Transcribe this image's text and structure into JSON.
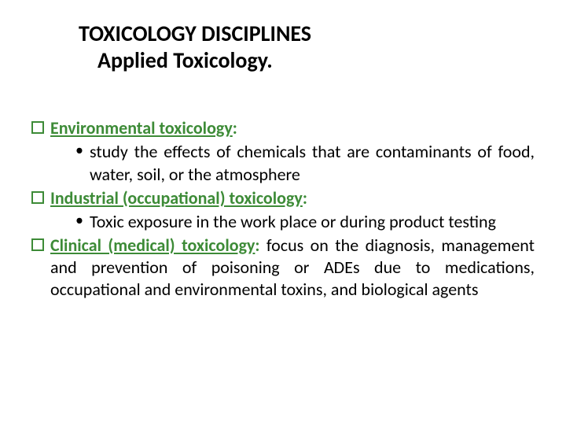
{
  "colors": {
    "accent": "#3d8b37",
    "text": "#000000",
    "background": "#ffffff"
  },
  "title": {
    "line1": "TOXICOLOGY DISCIPLINES",
    "line2": "Applied Toxicology."
  },
  "items": [
    {
      "heading": "Environmental toxicology",
      "heading_suffix": ":",
      "inline_body": "",
      "sub": "study the effects of chemicals that are contaminants of food, water, soil, or the atmosphere"
    },
    {
      "heading": "Industrial (occupational) toxicology",
      "heading_suffix": ":",
      "inline_body": "",
      "sub": "Toxic exposure in the work place or during product testing"
    },
    {
      "heading": "Clinical (medical) toxicology",
      "heading_suffix": ":",
      "inline_body": " focus on the diagnosis, management and prevention of poisoning or ADEs due to medications, occupational and environmental toxins, and biological agents",
      "sub": ""
    }
  ]
}
